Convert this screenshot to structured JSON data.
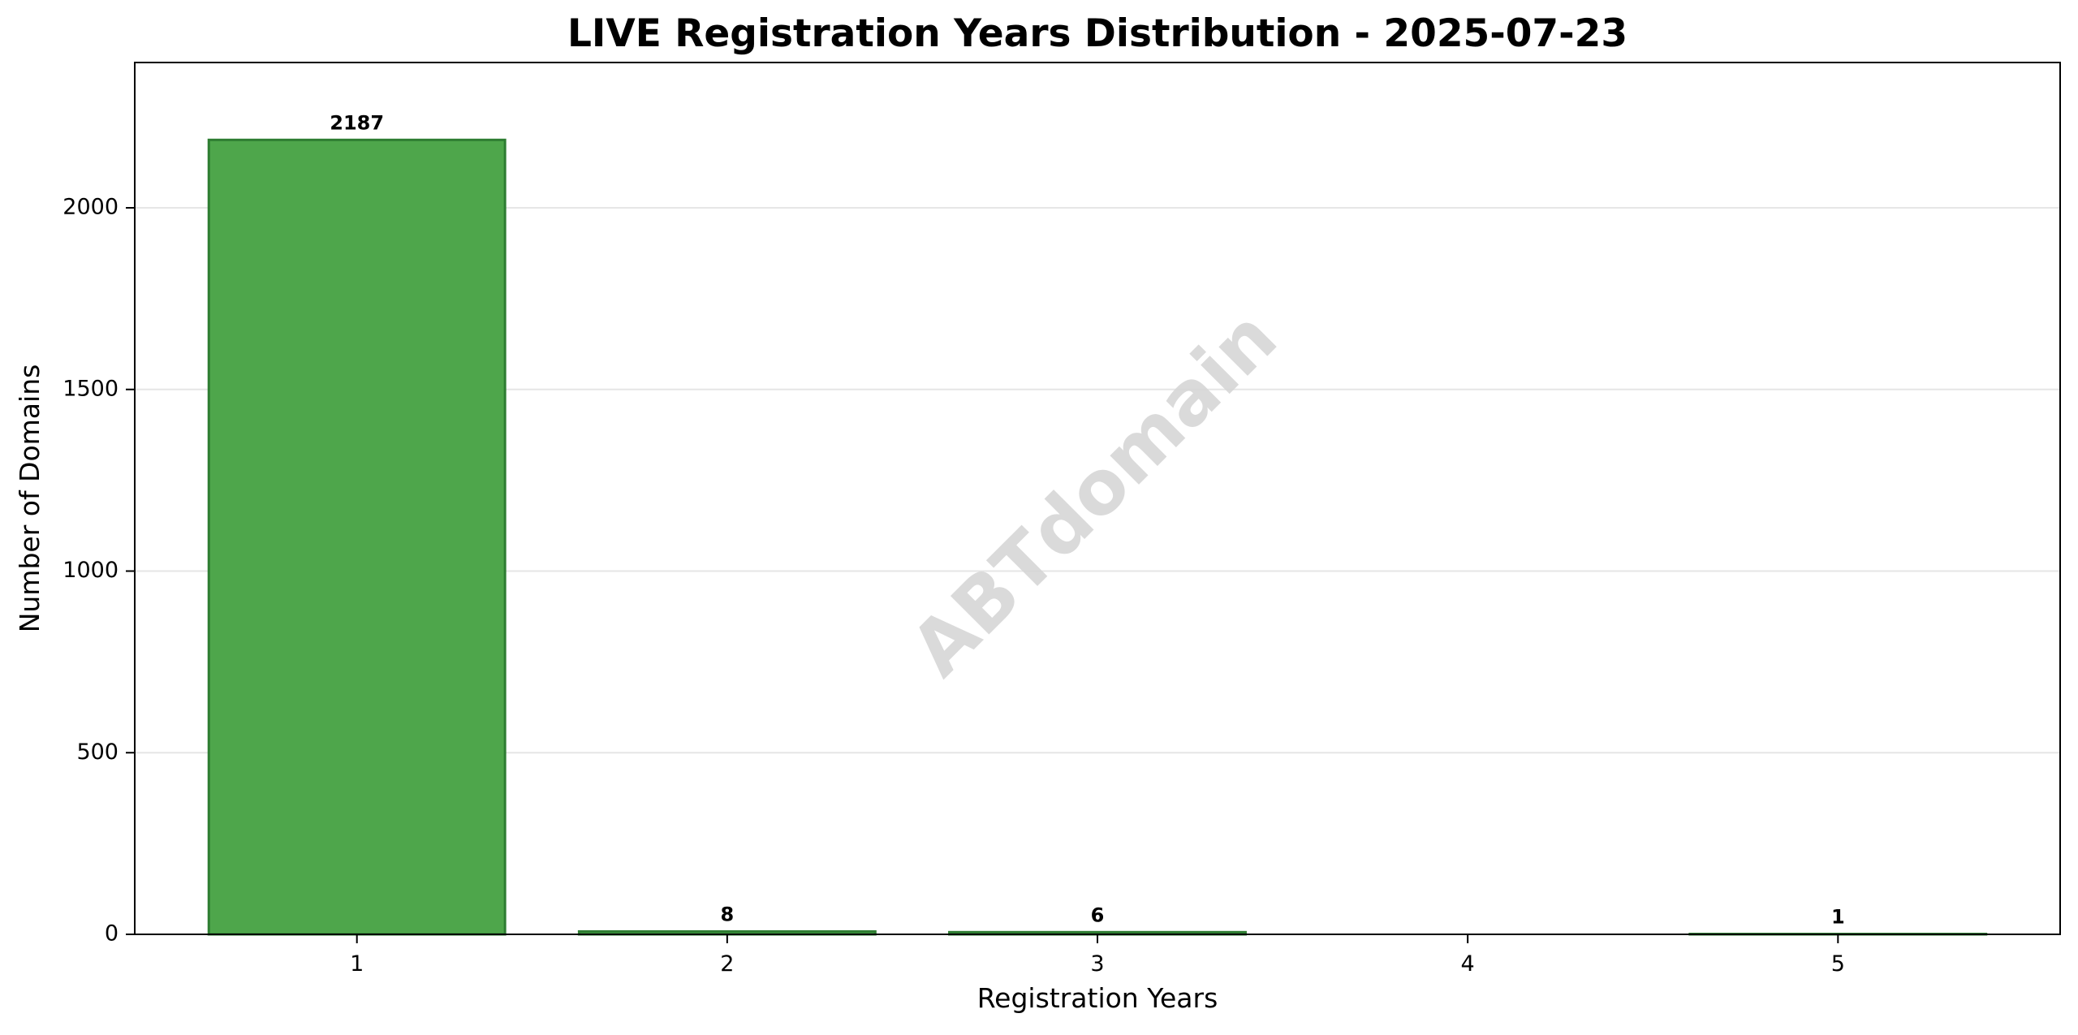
{
  "chart_data": {
    "type": "bar",
    "title": "LIVE Registration Years Distribution - 2025-07-23",
    "xlabel": "Registration Years",
    "ylabel": "Number of Domains",
    "categories": [
      "1",
      "2",
      "3",
      "4",
      "5"
    ],
    "values": [
      2187,
      8,
      6,
      0,
      1
    ],
    "value_labels": [
      "2187",
      "8",
      "6",
      "",
      "1"
    ],
    "ylim": [
      0,
      2400
    ],
    "yticks": [
      0,
      500,
      1000,
      1500,
      2000
    ],
    "ytick_labels": [
      "0",
      "500",
      "1000",
      "1500",
      "2000"
    ],
    "grid": "horizontal",
    "legend": "none",
    "watermark": "ABTdomain",
    "colors": {
      "bar_fill": "#4ea64b",
      "bar_edge": "#2e7d32",
      "grid": "#e6e6e6",
      "watermark": "#d3d3d3"
    }
  }
}
